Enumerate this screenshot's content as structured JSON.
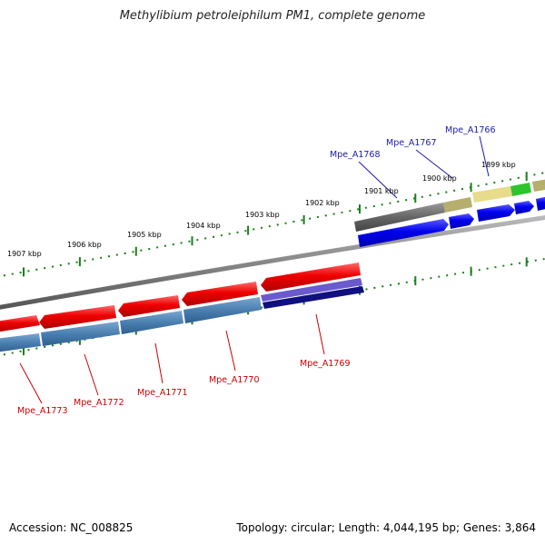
{
  "title": "Methylibium petroleiphilum PM1, complete genome",
  "footer": {
    "accession": "Accession: NC_008825",
    "stats": "Topology: circular; Length: 4,044,195 bp; Genes: 3,864"
  },
  "colors": {
    "backbone": "#8a8a8a",
    "forward_gene": "#0000ee",
    "reverse_gene": "#ee0000",
    "forward_label": "#1a1aaa",
    "reverse_label": "#cc0000",
    "tick": "#1a7f1a"
  },
  "scale_labels": [
    {
      "text": "1907 kbp"
    },
    {
      "text": "1906 kbp"
    },
    {
      "text": "1905 kbp"
    },
    {
      "text": "1904 kbp"
    },
    {
      "text": "1903 kbp"
    },
    {
      "text": "1902 kbp"
    },
    {
      "text": "1901 kbp"
    },
    {
      "text": "1900 kbp"
    },
    {
      "text": "1899 kbp"
    }
  ],
  "gene_labels": [
    {
      "text": "Mpe_A1766",
      "strand": "forward"
    },
    {
      "text": "Mpe_A1767",
      "strand": "forward"
    },
    {
      "text": "Mpe_A1768",
      "strand": "forward"
    },
    {
      "text": "Mpe_A1769",
      "strand": "reverse"
    },
    {
      "text": "Mpe_A1770",
      "strand": "reverse"
    },
    {
      "text": "Mpe_A1771",
      "strand": "reverse"
    },
    {
      "text": "Mpe_A1772",
      "strand": "reverse"
    },
    {
      "text": "Mpe_A1773",
      "strand": "reverse"
    }
  ]
}
